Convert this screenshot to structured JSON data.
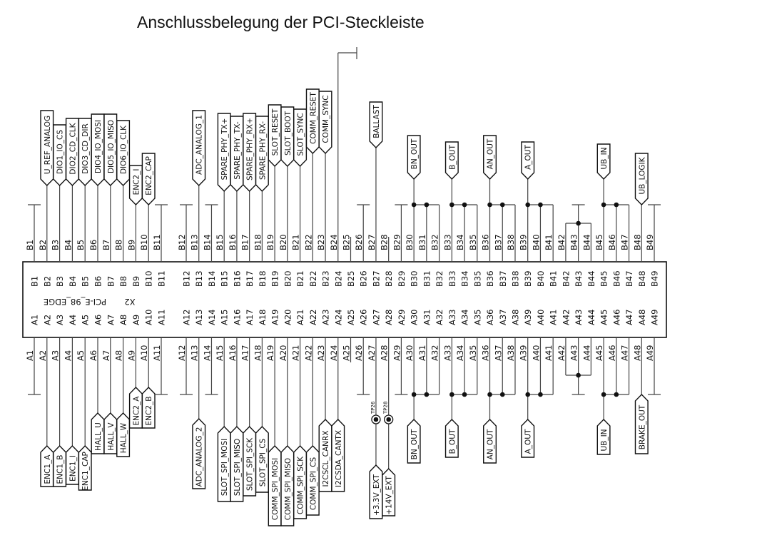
{
  "title": "Anschlussbelegung der PCI-Steckleiste",
  "connector": {
    "ref": "X2",
    "part": "PCI-E_98_EDGE",
    "pin_count_per_row": 49
  },
  "top_row": {
    "flags": [
      {
        "pin": "B2",
        "net": "U_REF_ANALOG"
      },
      {
        "pin": "B3",
        "net": "DIO1_IO_CS"
      },
      {
        "pin": "B4",
        "net": "DIO2_CD_CLK"
      },
      {
        "pin": "B5",
        "net": "DIO3_CD_DIR"
      },
      {
        "pin": "B6",
        "net": "DIO4_IO_MOSI"
      },
      {
        "pin": "B7",
        "net": "DIO5_IO_MISO"
      },
      {
        "pin": "B8",
        "net": "DIO6_IO_CLK"
      },
      {
        "pin": "B9",
        "net": "ENC2_I"
      },
      {
        "pin": "B10",
        "net": "ENC2_CAP"
      },
      {
        "pin": "B13",
        "net": "ADC_ANALOG_1"
      },
      {
        "pin": "B15",
        "net": "SPARE_PHY_TX+"
      },
      {
        "pin": "B16",
        "net": "SPARE_PHY_TX-"
      },
      {
        "pin": "B17",
        "net": "SPARE_PHY_RX+"
      },
      {
        "pin": "B18",
        "net": "SPARE_PHY_RX-"
      },
      {
        "pin": "B19",
        "net": "SLOT_RESET"
      },
      {
        "pin": "B20",
        "net": "SLOT_BOOT"
      },
      {
        "pin": "B21",
        "net": "SLOT_SYNC"
      },
      {
        "pin": "B22",
        "net": "COMM_RESET"
      },
      {
        "pin": "B23",
        "net": "COMM_SYNC"
      },
      {
        "pin": "B27",
        "net": "BALLAST"
      },
      {
        "pin": "B30",
        "net": "BN_OUT"
      },
      {
        "pin": "B33",
        "net": "B_OUT"
      },
      {
        "pin": "B36",
        "net": "AN_OUT"
      },
      {
        "pin": "B39",
        "net": "A_OUT"
      },
      {
        "pin": "B45",
        "net": "UB_IN"
      },
      {
        "pin": "B48",
        "net": "UB_LOGIK"
      }
    ],
    "terminated": [
      "B1",
      "B11",
      "B12",
      "B14",
      "B26",
      "B29",
      "B43",
      "B49"
    ],
    "groups": [
      [
        "B30",
        "B31",
        "B32"
      ],
      [
        "B33",
        "B34",
        "B35"
      ],
      [
        "B36",
        "B37",
        "B38"
      ],
      [
        "B39",
        "B40",
        "B41"
      ],
      [
        "B45",
        "B46",
        "B47"
      ]
    ],
    "bridges": [
      [
        "B42",
        "B43",
        "B44"
      ]
    ]
  },
  "bottom_row": {
    "flags": [
      {
        "pin": "A2",
        "net": "ENC1_A"
      },
      {
        "pin": "A3",
        "net": "ENC1_B"
      },
      {
        "pin": "A4",
        "net": "ENC1_I"
      },
      {
        "pin": "A5",
        "net": "ENC1_CAP"
      },
      {
        "pin": "A6",
        "net": "HALL_U"
      },
      {
        "pin": "A7",
        "net": "HALL_V"
      },
      {
        "pin": "A8",
        "net": "HALL_W"
      },
      {
        "pin": "A9",
        "net": "ENC2_A"
      },
      {
        "pin": "A10",
        "net": "ENC2_B"
      },
      {
        "pin": "A13",
        "net": "ADC_ANALOG_2"
      },
      {
        "pin": "A15",
        "net": "SLOT_SPI_MOSI"
      },
      {
        "pin": "A16",
        "net": "SLOT_SPI_MISO"
      },
      {
        "pin": "A17",
        "net": "SLOT_SPI_SCK"
      },
      {
        "pin": "A18",
        "net": "SLOT_SPI_CS"
      },
      {
        "pin": "A19",
        "net": "COMM_SPI_MOSI"
      },
      {
        "pin": "A20",
        "net": "COMM_SPI_MISO"
      },
      {
        "pin": "A21",
        "net": "COMM_SPI_SCK"
      },
      {
        "pin": "A22",
        "net": "COMM_SPI_CS"
      },
      {
        "pin": "A23",
        "net": "I2CSCL_CANRX"
      },
      {
        "pin": "A24",
        "net": "I2CSDA_CANTX"
      },
      {
        "pin": "A27",
        "net": "+3.3V_EXT"
      },
      {
        "pin": "A28",
        "net": "+14V_EXT"
      },
      {
        "pin": "A30",
        "net": "BN_OUT"
      },
      {
        "pin": "A33",
        "net": "B_OUT"
      },
      {
        "pin": "A36",
        "net": "AN_OUT"
      },
      {
        "pin": "A39",
        "net": "A_OUT"
      },
      {
        "pin": "A45",
        "net": "UB_IN"
      },
      {
        "pin": "A48",
        "net": "BRAKE_OUT"
      }
    ],
    "terminated": [
      "A1",
      "A11",
      "A12",
      "A14",
      "A26",
      "A29",
      "A43",
      "A49"
    ],
    "groups": [
      [
        "A30",
        "A31",
        "A32"
      ],
      [
        "A33",
        "A34",
        "A35"
      ],
      [
        "A36",
        "A37",
        "A38"
      ],
      [
        "A39",
        "A40",
        "A41"
      ],
      [
        "A45",
        "A46",
        "A47"
      ]
    ],
    "bridges": [
      [
        "A42",
        "A43",
        "A44"
      ]
    ],
    "test_points": [
      {
        "name": "TP26",
        "pin": "A27"
      },
      {
        "name": "TP28",
        "pin": "A28"
      }
    ]
  }
}
